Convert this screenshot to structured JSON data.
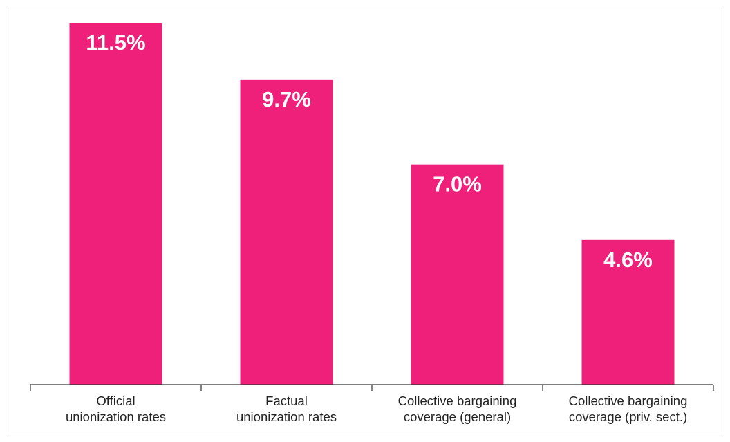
{
  "colors": {
    "bar": "#ee2079",
    "value_text": "#ffffff",
    "axis": "#333333",
    "frame_border": "#d3d3d3"
  },
  "chart_data": {
    "type": "bar",
    "title": "",
    "xlabel": "",
    "ylabel": "",
    "categories": [
      [
        "Official",
        "unionization rates"
      ],
      [
        "Factual",
        "unionization rates"
      ],
      [
        "Collective bargaining",
        "coverage (general)"
      ],
      [
        "Collective bargaining",
        "coverage (priv. sect.)"
      ]
    ],
    "values": [
      11.5,
      9.7,
      7.0,
      4.6
    ],
    "value_labels": [
      "11.5%",
      "9.7%",
      "7.0%",
      "4.6%"
    ],
    "ylim": [
      0,
      11.5
    ],
    "grid": false,
    "legend": "none"
  }
}
